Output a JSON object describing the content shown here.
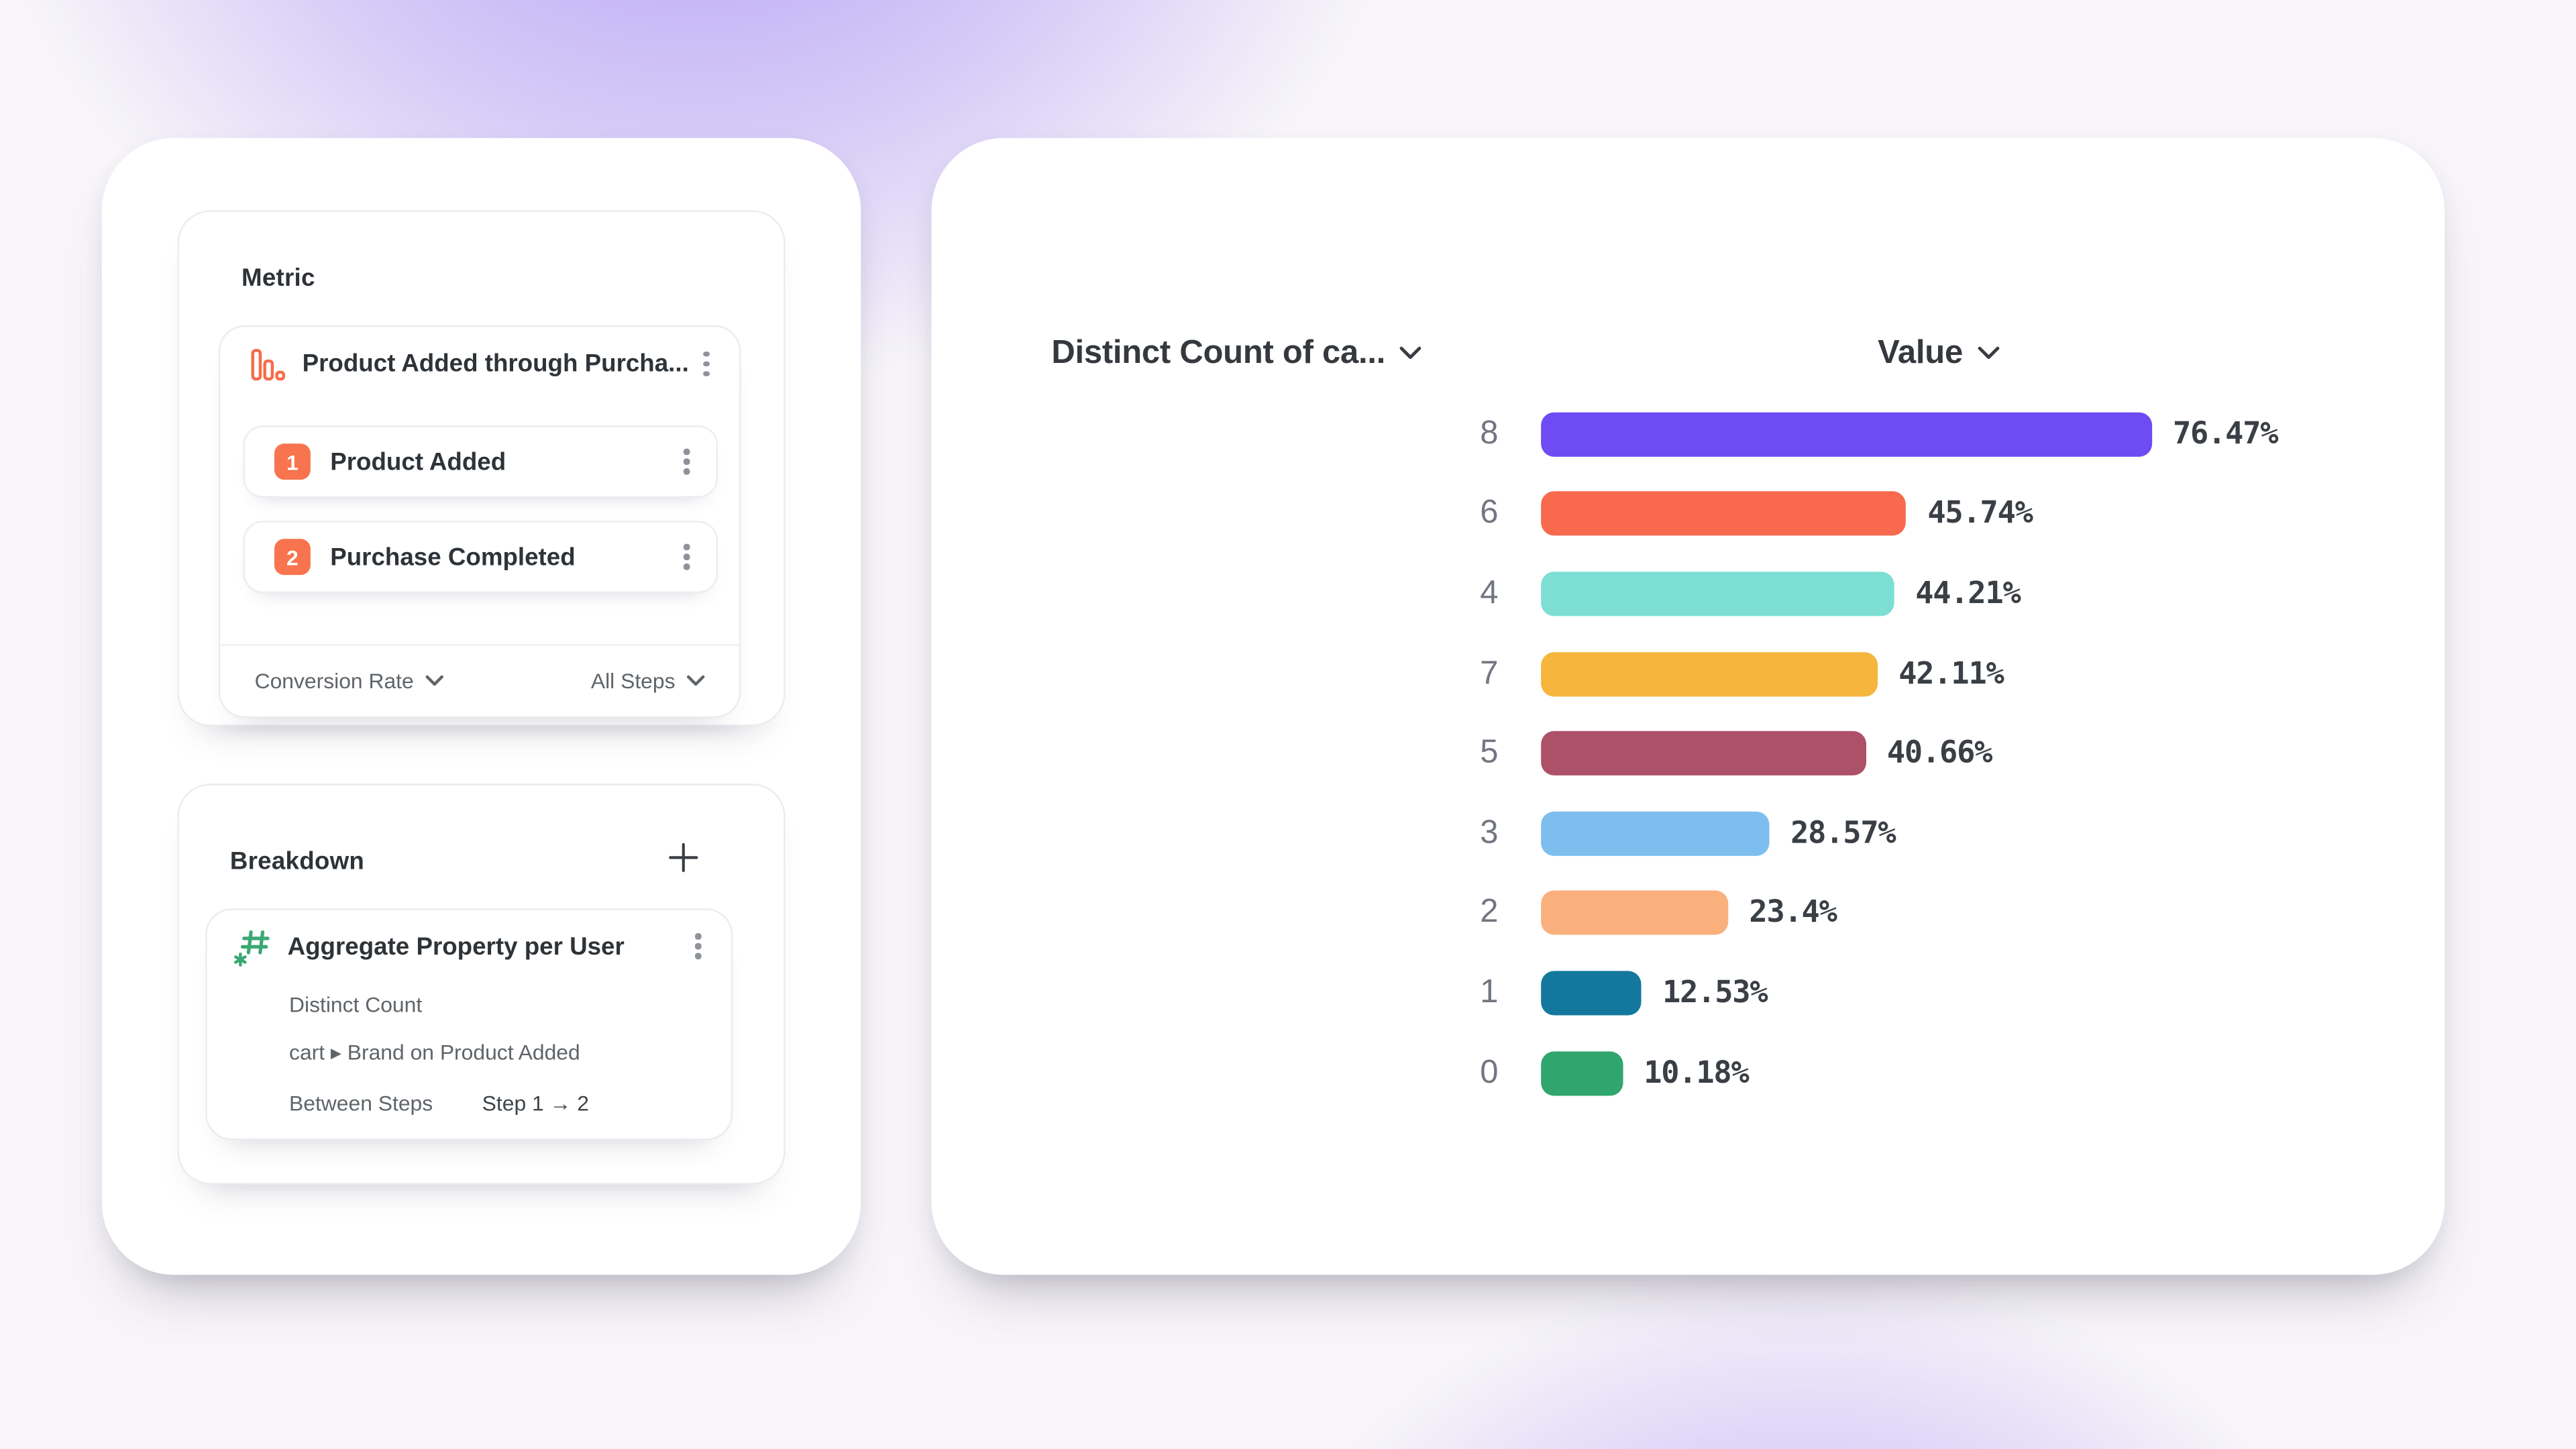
{
  "colors": {
    "background_glow": "#8868F2",
    "step_badge": "#F7744F",
    "funnel_icon": "#F46E49",
    "hash_icon": "#3BA873",
    "text_primary": "#2E3338",
    "text_secondary": "#5F6469",
    "category_label": "#717681",
    "value_label": "#3A3F45"
  },
  "metric_panel": {
    "title": "Metric",
    "funnel": {
      "name": "Product Added through Purcha..."
    },
    "steps": [
      {
        "number": "1",
        "label": "Product Added"
      },
      {
        "number": "2",
        "label": "Purchase Completed"
      }
    ],
    "footer": {
      "left": "Conversion Rate",
      "right": "All Steps"
    }
  },
  "breakdown_panel": {
    "title": "Breakdown",
    "add_button": "+",
    "item": {
      "title": "Aggregate Property per User",
      "details": [
        {
          "label": "Distinct Count"
        },
        {
          "label": "cart ▸ Brand on Product Added"
        },
        {
          "label": "Between Steps",
          "value": "Step 1 → 2"
        }
      ]
    }
  },
  "chart_data": {
    "type": "bar",
    "orientation": "horizontal",
    "column_headers": [
      "Distinct Count of ca...",
      "Value"
    ],
    "categories": [
      "8",
      "6",
      "4",
      "7",
      "5",
      "3",
      "2",
      "1",
      "0"
    ],
    "values": [
      76.47,
      45.74,
      44.21,
      42.11,
      40.66,
      28.57,
      23.4,
      12.53,
      10.18
    ],
    "labels": [
      "76.47%",
      "45.74%",
      "44.21%",
      "42.11%",
      "40.66%",
      "28.57%",
      "23.4%",
      "12.53%",
      "10.18%"
    ],
    "colors": [
      "#6E4BF2",
      "#F8694D",
      "#7DDFD3",
      "#F6B53C",
      "#AD5168",
      "#7EBEEF",
      "#FAB07D",
      "#14789E",
      "#30A56E"
    ],
    "xlim": [
      0,
      100
    ],
    "value_suffix": "%",
    "grid": false,
    "legend": false
  }
}
